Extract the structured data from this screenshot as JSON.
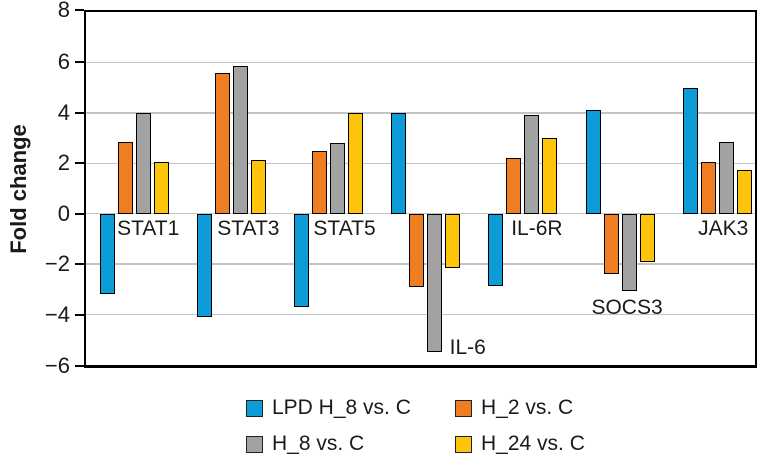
{
  "chart_data": {
    "type": "bar",
    "title": "",
    "xlabel": "",
    "ylabel": "Fold change",
    "ylim": [
      -6,
      8
    ],
    "yticks": [
      8,
      6,
      4,
      2,
      0,
      -2,
      -4,
      -6
    ],
    "grid": true,
    "legend_position": "bottom",
    "gridline_color": "#c4c4c4",
    "axis_color": "#000000",
    "bar_border_color": "#000000",
    "text_color": "#1a1a1a",
    "categories": [
      "STAT1",
      "STAT3",
      "STAT5",
      "IL-6",
      "IL-6R",
      "SOCS3",
      "JAK3"
    ],
    "series": [
      {
        "name": "LPD H_8 vs. C",
        "color": "#0e9cd8",
        "values": [
          -3.2,
          -4.1,
          -3.7,
          4.0,
          -2.85,
          4.1,
          5.0
        ]
      },
      {
        "name": "H_2 vs. C",
        "color": "#ef7d22",
        "values": [
          2.85,
          5.6,
          2.5,
          -2.9,
          2.2,
          -2.4,
          2.05
        ]
      },
      {
        "name": "H_8 vs. C",
        "color": "#a2a2a2",
        "values": [
          4.0,
          5.85,
          2.8,
          -5.5,
          3.9,
          -3.05,
          2.85
        ]
      },
      {
        "name": "H_24 vs. C",
        "color": "#fec30b",
        "values": [
          2.05,
          2.15,
          4.0,
          -2.15,
          3.0,
          -1.9,
          1.75
        ]
      }
    ],
    "category_label_placement": [
      {
        "category": "STAT1",
        "position": "axis",
        "dx": 14
      },
      {
        "category": "STAT3",
        "position": "axis",
        "dx": 17
      },
      {
        "category": "STAT5",
        "position": "axis",
        "dx": 16
      },
      {
        "category": "IL-6",
        "position": "below-bars",
        "dx": 42
      },
      {
        "category": "IL-6R",
        "position": "axis",
        "dx": 14
      },
      {
        "category": "SOCS3",
        "position": "below-bars",
        "dx": 7
      },
      {
        "category": "JAK3",
        "position": "axis",
        "dx": 6
      }
    ]
  }
}
